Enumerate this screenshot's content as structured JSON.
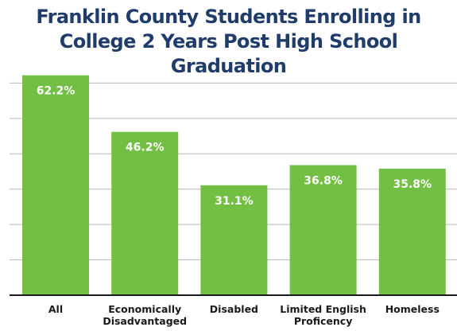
{
  "chart_data": {
    "type": "bar",
    "title": [
      "Franklin County Students Enrolling in",
      "College 2 Years Post High School Graduation"
    ],
    "categories": [
      [
        "All"
      ],
      [
        "Economically",
        "Disadvantaged"
      ],
      [
        "Disabled"
      ],
      [
        "Limited English",
        "Proficency"
      ],
      [
        "Homeless"
      ]
    ],
    "values": [
      62.2,
      46.2,
      31.1,
      36.8,
      35.8
    ],
    "value_labels": [
      "62.2%",
      "46.2%",
      "31.1%",
      "36.8%",
      "35.8%"
    ],
    "xlabel": "",
    "ylabel": "",
    "ylim": [
      0,
      70
    ],
    "grid": "horizontal",
    "legend": "none",
    "colors": {
      "bar": "#72bf44",
      "title": "#1f3c6b",
      "axis": "#1a1a1a",
      "grid": "#b7b7b7"
    }
  }
}
